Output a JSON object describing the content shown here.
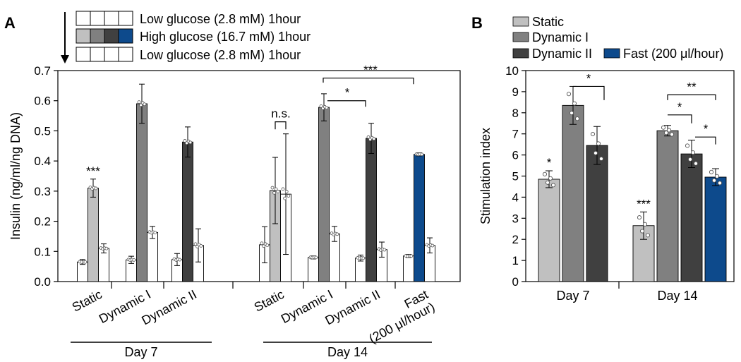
{
  "panels": {
    "A": {
      "letter": "A",
      "protocol": [
        {
          "label": "Low glucose (2.8 mM) 1hour",
          "colors": [
            "#ffffff",
            "#ffffff",
            "#ffffff",
            "#ffffff"
          ]
        },
        {
          "label": "High glucose (16.7 mM) 1hour",
          "colors": [
            "#c0c0c0",
            "#808080",
            "#404040",
            "#0d4a8c"
          ]
        },
        {
          "label": "Low glucose (2.8 mM) 1hour",
          "colors": [
            "#ffffff",
            "#ffffff",
            "#ffffff",
            "#ffffff"
          ]
        }
      ]
    },
    "B": {
      "letter": "B",
      "legend": [
        {
          "name": "Static",
          "color": "#c0c0c0"
        },
        {
          "name": "Dynamic I",
          "color": "#808080"
        },
        {
          "name": "Dynamic II",
          "color": "#404040"
        },
        {
          "name": "Fast (200 μl/hour)",
          "color": "#0d4a8c"
        }
      ]
    }
  },
  "chart_data": [
    {
      "panel": "A",
      "type": "bar",
      "ylabel": "Insulin (ng/ml/ng DNA)",
      "ylim": [
        0,
        0.7
      ],
      "yticks": [
        "0.0",
        "0.1",
        "0.2",
        "0.3",
        "0.4",
        "0.5",
        "0.6",
        "0.7"
      ],
      "groups": [
        {
          "name": "Day 7",
          "categories": [
            {
              "label": "Static",
              "values": [
                0.065,
                0.31,
                0.11
              ],
              "errors": [
                0.008,
                0.03,
                0.015
              ],
              "high_color": "#c0c0c0"
            },
            {
              "label": "Dynamic I",
              "values": [
                0.072,
                0.59,
                0.163
              ],
              "errors": [
                0.012,
                0.065,
                0.02
              ],
              "high_color": "#808080"
            },
            {
              "label": "Dynamic II",
              "values": [
                0.073,
                0.463,
                0.12
              ],
              "errors": [
                0.02,
                0.05,
                0.055
              ],
              "high_color": "#404040"
            }
          ]
        },
        {
          "name": "Day 14",
          "categories": [
            {
              "label": "Static",
              "values": [
                0.122,
                0.302,
                0.29
              ],
              "errors": [
                0.06,
                0.11,
                0.2
              ],
              "high_color": "#c0c0c0"
            },
            {
              "label": "Dynamic I",
              "values": [
                0.08,
                0.578,
                0.158
              ],
              "errors": [
                0.005,
                0.045,
                0.025
              ],
              "high_color": "#808080"
            },
            {
              "label": "Dynamic II",
              "values": [
                0.078,
                0.475,
                0.106
              ],
              "errors": [
                0.01,
                0.05,
                0.025
              ],
              "high_color": "#404040"
            },
            {
              "label": "Fast (200 μl/hour)",
              "label_lines": [
                "Fast",
                "(200 μl/hour)"
              ],
              "values": [
                0.085,
                0.422,
                0.12
              ],
              "errors": [
                0.005,
                0.005,
                0.025
              ],
              "high_color": "#0d4a8c"
            }
          ]
        }
      ],
      "annotations": [
        {
          "text": "***",
          "group": 0,
          "category": 0
        },
        {
          "text": "n.s.",
          "group": 1,
          "from": 0,
          "to": 0
        },
        {
          "text": "*",
          "group": 1,
          "from": 1,
          "to": 2
        },
        {
          "text": "***",
          "group": 1,
          "from": 1,
          "to": 3
        }
      ]
    },
    {
      "panel": "B",
      "type": "bar",
      "ylabel": "Stimulation index",
      "ylim": [
        0,
        10
      ],
      "yticks": [
        "0",
        "1",
        "2",
        "3",
        "4",
        "5",
        "6",
        "7",
        "8",
        "9",
        "10"
      ],
      "categories": [
        "Day 7",
        "Day 14"
      ],
      "series": [
        {
          "name": "Static",
          "values": [
            4.85,
            2.65
          ],
          "errors": [
            0.4,
            0.65
          ]
        },
        {
          "name": "Dynamic I",
          "values": [
            8.35,
            7.15
          ],
          "errors": [
            0.9,
            0.25
          ]
        },
        {
          "name": "Dynamic II",
          "values": [
            6.45,
            6.05
          ],
          "errors": [
            0.9,
            0.65
          ]
        },
        {
          "name": "Fast (200 μl/hour)",
          "values": [
            null,
            4.95
          ],
          "errors": [
            null,
            0.4
          ]
        }
      ],
      "annotations": [
        {
          "text": "*",
          "category": 0,
          "series": 0
        },
        {
          "text": "***",
          "category": 1,
          "series": 0
        },
        {
          "text": "*",
          "category": 0,
          "from": 1,
          "to": 2
        },
        {
          "text": "*",
          "category": 1,
          "from": 1,
          "to": 2
        },
        {
          "text": "**",
          "category": 1,
          "from": 1,
          "to": 3
        },
        {
          "text": "*",
          "category": 1,
          "from": 2,
          "to": 3
        }
      ]
    }
  ]
}
